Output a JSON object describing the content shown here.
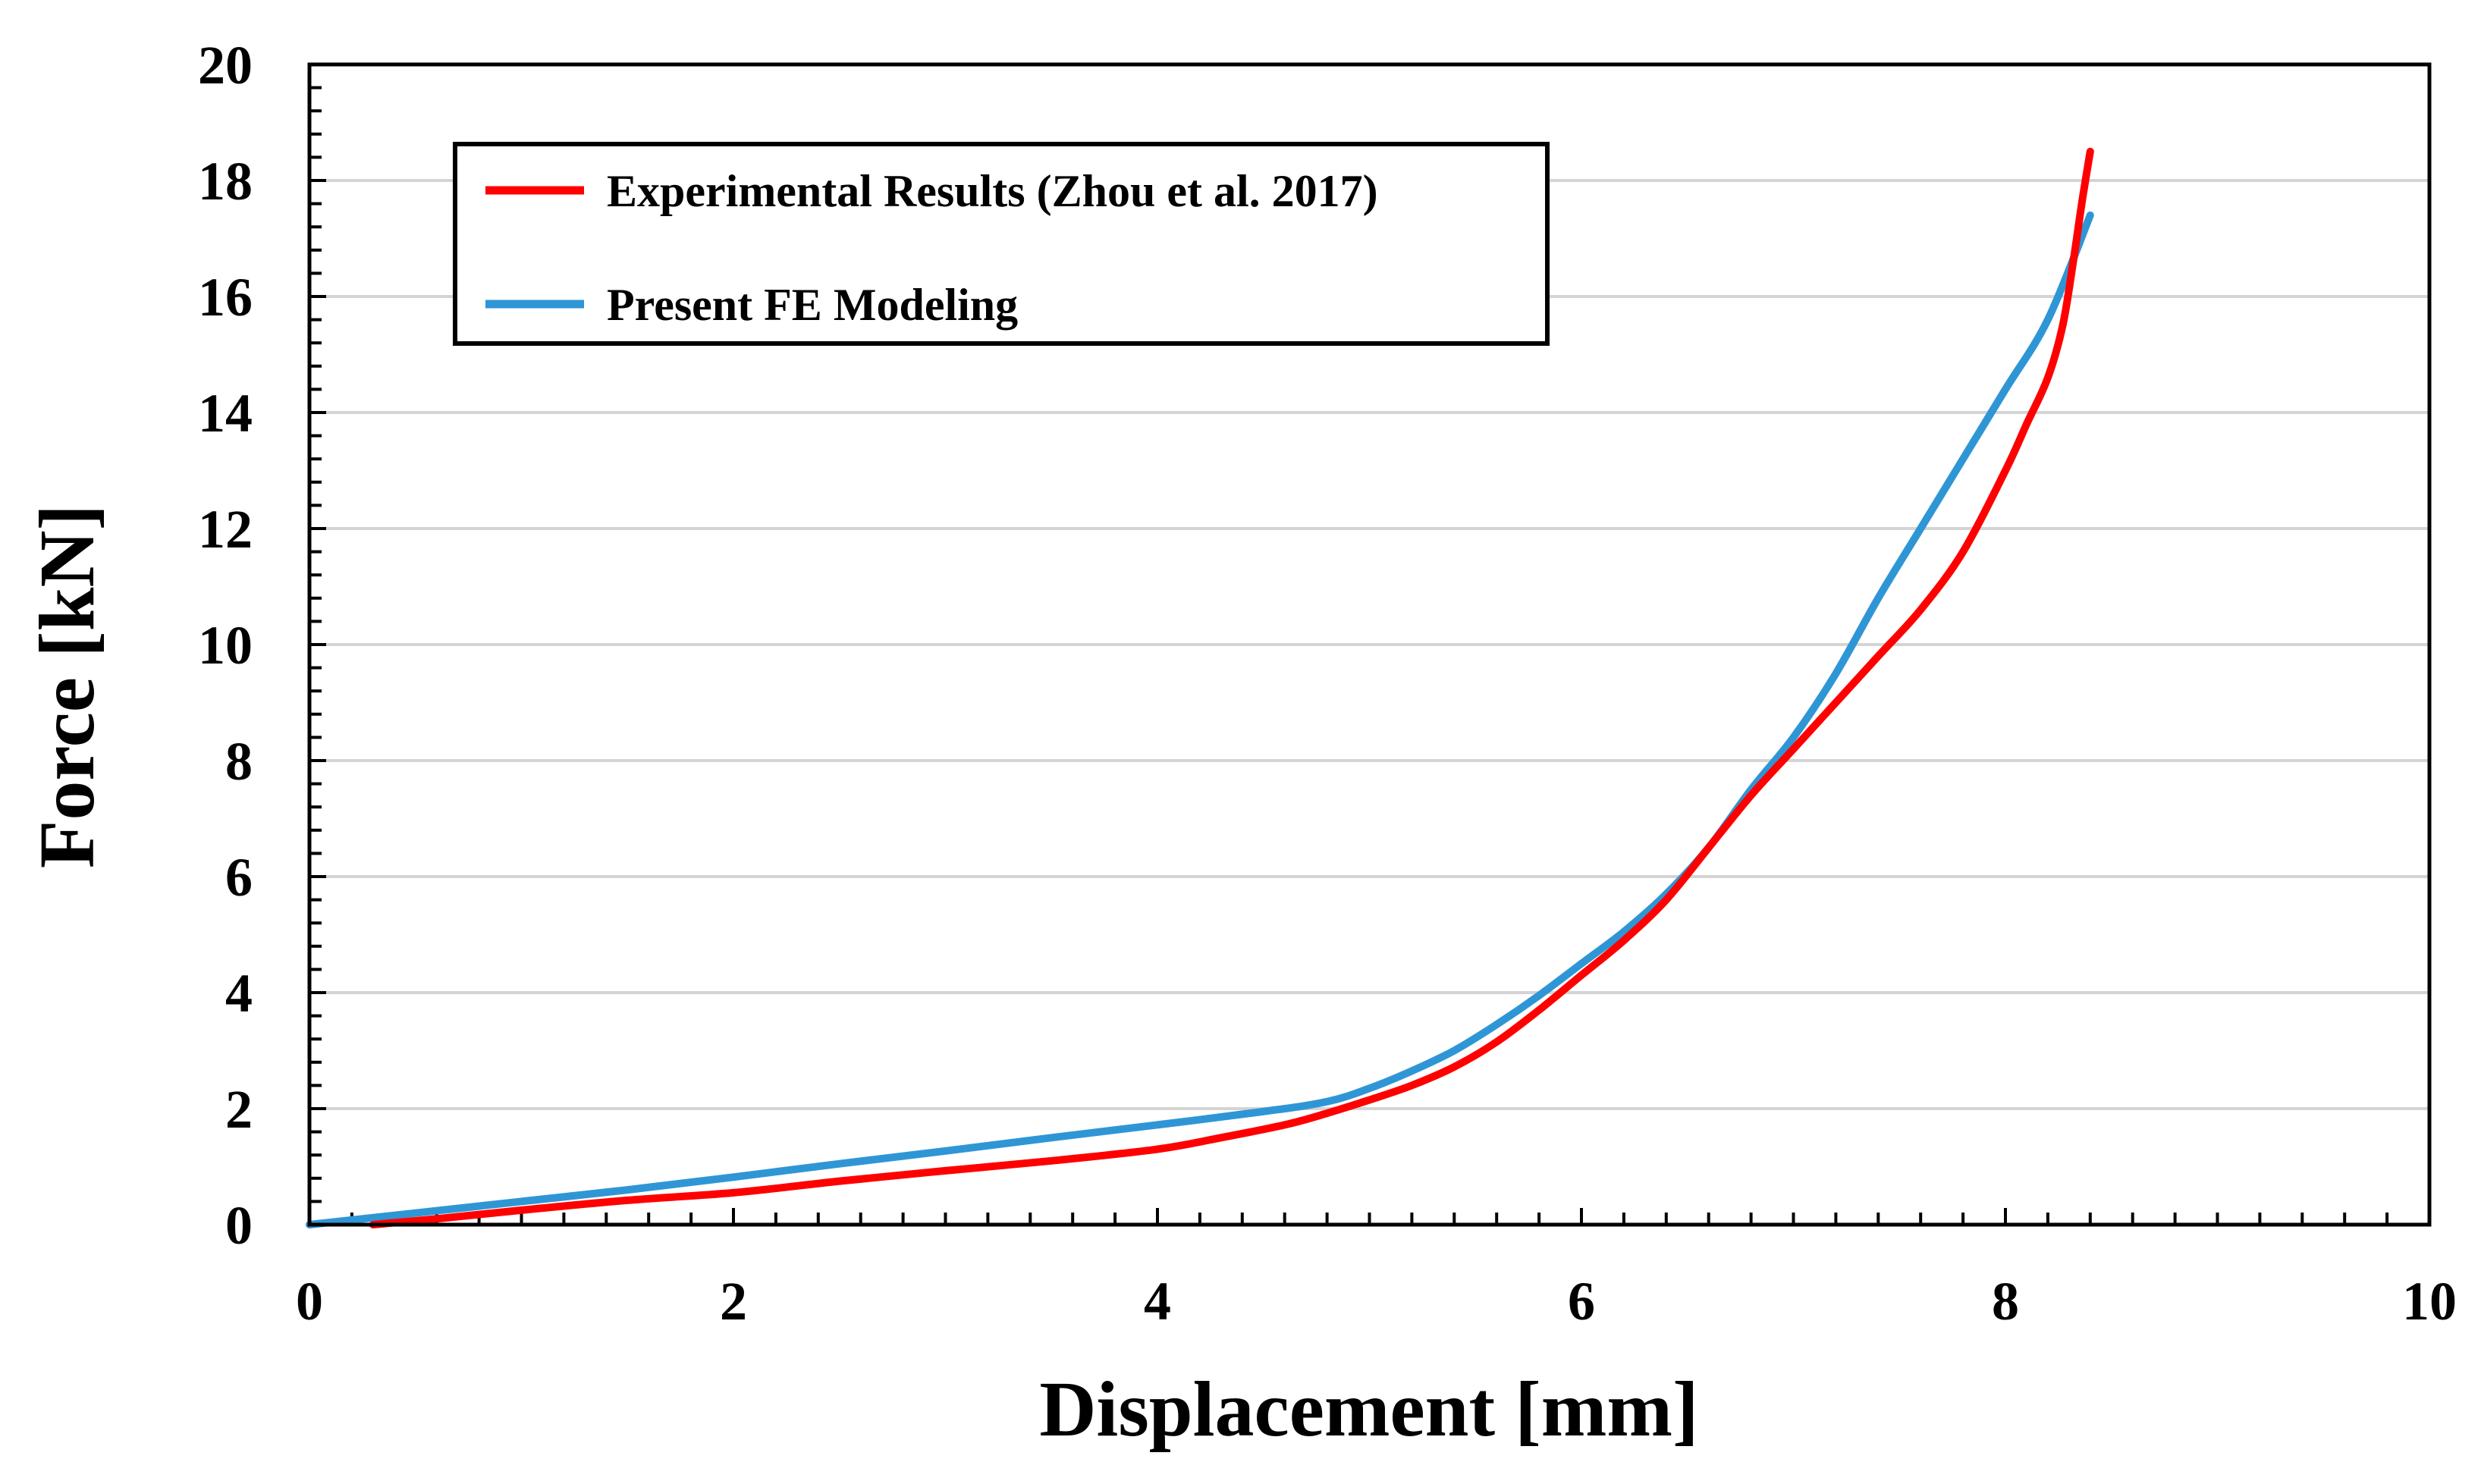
{
  "chart_data": {
    "type": "line",
    "title": "",
    "xlabel": "Displacement [mm]",
    "ylabel": "Force [kN]",
    "xlim": [
      0,
      10
    ],
    "ylim": [
      0,
      20
    ],
    "x_ticks": [
      0,
      2,
      4,
      6,
      8,
      10
    ],
    "x_tick_labels": [
      "0",
      "2",
      "4",
      "6",
      "8",
      "10"
    ],
    "y_ticks": [
      0,
      2,
      4,
      6,
      8,
      10,
      12,
      14,
      16,
      18,
      20
    ],
    "y_tick_labels": [
      "0",
      "2",
      "4",
      "6",
      "8",
      "10",
      "12",
      "14",
      "16",
      "18",
      "20"
    ],
    "x_minor_step": 0.2,
    "y_minor_step": 0.4,
    "grid": "horizontal",
    "legend_position": "top-left",
    "series": [
      {
        "name": "Experimental Results (Zhou et al. 2017)",
        "color": "#ff0000",
        "points": [
          [
            0.3,
            0.0
          ],
          [
            0.6,
            0.1
          ],
          [
            1.0,
            0.25
          ],
          [
            1.5,
            0.42
          ],
          [
            2.0,
            0.55
          ],
          [
            2.5,
            0.75
          ],
          [
            3.0,
            0.93
          ],
          [
            3.5,
            1.1
          ],
          [
            4.0,
            1.3
          ],
          [
            4.3,
            1.5
          ],
          [
            4.6,
            1.72
          ],
          [
            4.8,
            1.92
          ],
          [
            5.0,
            2.15
          ],
          [
            5.2,
            2.4
          ],
          [
            5.4,
            2.72
          ],
          [
            5.6,
            3.15
          ],
          [
            5.8,
            3.7
          ],
          [
            6.0,
            4.3
          ],
          [
            6.2,
            4.9
          ],
          [
            6.4,
            5.6
          ],
          [
            6.6,
            6.5
          ],
          [
            6.8,
            7.4
          ],
          [
            7.0,
            8.2
          ],
          [
            7.2,
            9.0
          ],
          [
            7.4,
            9.8
          ],
          [
            7.6,
            10.6
          ],
          [
            7.8,
            11.6
          ],
          [
            8.0,
            13.0
          ],
          [
            8.1,
            13.8
          ],
          [
            8.2,
            14.6
          ],
          [
            8.27,
            15.5
          ],
          [
            8.32,
            16.6
          ],
          [
            8.36,
            17.6
          ],
          [
            8.4,
            18.5
          ]
        ]
      },
      {
        "name": "Present FE Modeling",
        "color": "#2f96d6",
        "points": [
          [
            0.0,
            0.0
          ],
          [
            0.5,
            0.2
          ],
          [
            1.0,
            0.4
          ],
          [
            1.5,
            0.6
          ],
          [
            2.0,
            0.82
          ],
          [
            2.5,
            1.05
          ],
          [
            3.0,
            1.27
          ],
          [
            3.5,
            1.5
          ],
          [
            4.0,
            1.72
          ],
          [
            4.5,
            1.95
          ],
          [
            4.8,
            2.12
          ],
          [
            5.0,
            2.35
          ],
          [
            5.2,
            2.65
          ],
          [
            5.4,
            3.0
          ],
          [
            5.6,
            3.45
          ],
          [
            5.8,
            3.95
          ],
          [
            6.0,
            4.5
          ],
          [
            6.2,
            5.05
          ],
          [
            6.4,
            5.7
          ],
          [
            6.6,
            6.5
          ],
          [
            6.8,
            7.5
          ],
          [
            7.0,
            8.4
          ],
          [
            7.2,
            9.5
          ],
          [
            7.4,
            10.8
          ],
          [
            7.6,
            12.0
          ],
          [
            7.8,
            13.2
          ],
          [
            8.0,
            14.4
          ],
          [
            8.2,
            15.6
          ],
          [
            8.4,
            17.4
          ]
        ]
      }
    ]
  }
}
